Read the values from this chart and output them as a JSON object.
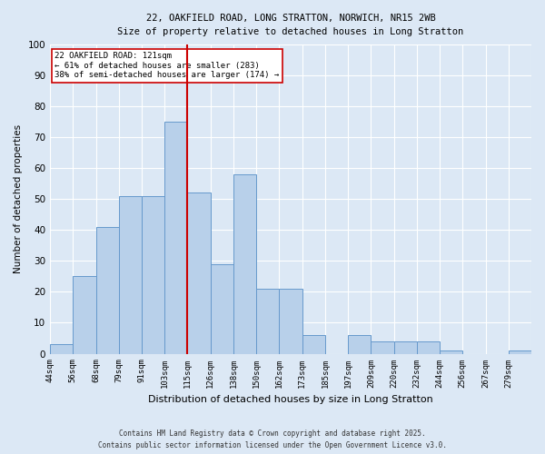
{
  "title_line1": "22, OAKFIELD ROAD, LONG STRATTON, NORWICH, NR15 2WB",
  "title_line2": "Size of property relative to detached houses in Long Stratton",
  "xlabel": "Distribution of detached houses by size in Long Stratton",
  "ylabel": "Number of detached properties",
  "categories": [
    "44sqm",
    "56sqm",
    "68sqm",
    "79sqm",
    "91sqm",
    "103sqm",
    "115sqm",
    "126sqm",
    "138sqm",
    "150sqm",
    "162sqm",
    "173sqm",
    "185sqm",
    "197sqm",
    "209sqm",
    "220sqm",
    "232sqm",
    "244sqm",
    "256sqm",
    "267sqm",
    "279sqm"
  ],
  "bar_values": [
    3,
    25,
    41,
    51,
    51,
    75,
    52,
    29,
    58,
    21,
    21,
    6,
    0,
    6,
    4,
    4,
    4,
    1,
    0,
    0,
    1
  ],
  "bar_color": "#b8d0ea",
  "bar_edge_color": "#6699cc",
  "vline_color": "#cc0000",
  "vline_x": 6.0,
  "annotation_text": "22 OAKFIELD ROAD: 121sqm\n← 61% of detached houses are smaller (283)\n38% of semi-detached houses are larger (174) →",
  "annotation_box_color": "#ffffff",
  "annotation_box_edge": "#cc0000",
  "background_color": "#dce8f5",
  "grid_color": "#ffffff",
  "footer_line1": "Contains HM Land Registry data © Crown copyright and database right 2025.",
  "footer_line2": "Contains public sector information licensed under the Open Government Licence v3.0.",
  "ylim": [
    0,
    100
  ],
  "yticks": [
    0,
    10,
    20,
    30,
    40,
    50,
    60,
    70,
    80,
    90,
    100
  ]
}
